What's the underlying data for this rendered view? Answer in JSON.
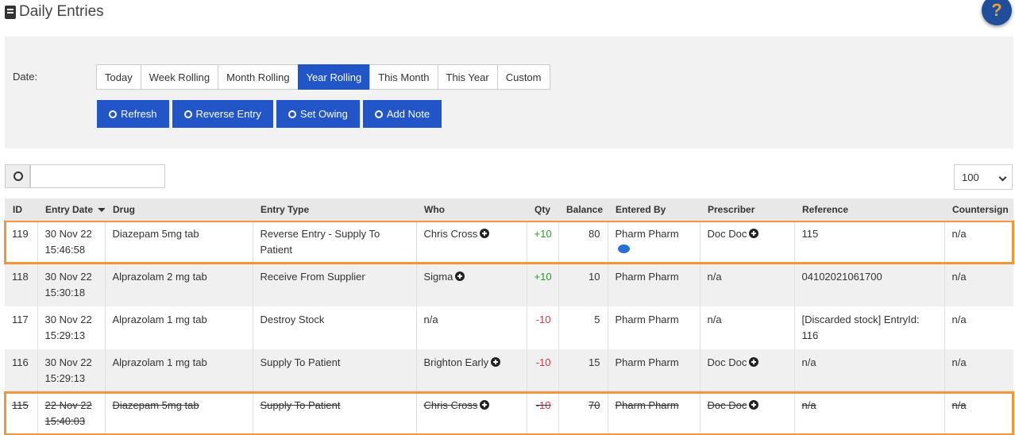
{
  "header": {
    "title": "Daily Entries",
    "help": "?"
  },
  "filters": {
    "date_label": "Date:",
    "ranges": [
      "Today",
      "Week Rolling",
      "Month Rolling",
      "Year Rolling",
      "This Month",
      "This Year",
      "Custom"
    ],
    "active_index": 3
  },
  "actions": [
    "Refresh",
    "Reverse Entry",
    "Set Owing",
    "Add Note"
  ],
  "page_size": "100",
  "table": {
    "columns": [
      "ID",
      "Entry Date",
      "Drug",
      "Entry Type",
      "Who",
      "Qty",
      "Balance",
      "Entered By",
      "Prescriber",
      "Reference",
      "Countersign"
    ],
    "rows": [
      {
        "cells": [
          "119",
          "30 Nov 22 15:46:58",
          "Diazepam 5mg tab",
          "Reverse Entry - Supply To Patient",
          "Chris Cross",
          "+10",
          "80",
          "Pharm Pharm",
          "Doc Doc",
          "115",
          "n/a"
        ],
        "qty_color": "#2e9a2e",
        "who_plus": true,
        "prescriber_plus": true,
        "comment": true,
        "highlight": true,
        "struck": false
      },
      {
        "cells": [
          "118",
          "30 Nov 22 15:30:18",
          "Alprazolam 2 mg tab",
          "Receive From Supplier",
          "Sigma",
          "+10",
          "10",
          "Pharm Pharm",
          "n/a",
          "04102021061700",
          "n/a"
        ],
        "qty_color": "#2e9a2e",
        "who_plus": true,
        "prescriber_plus": false,
        "comment": false,
        "highlight": false,
        "struck": false
      },
      {
        "cells": [
          "117",
          "30 Nov 22 15:29:13",
          "Alprazolam 1 mg tab",
          "Destroy Stock",
          "n/a",
          "-10",
          "5",
          "Pharm Pharm",
          "n/a",
          "[Discarded stock] EntryId: 116",
          "n/a"
        ],
        "qty_color": "#d9363e",
        "who_plus": false,
        "prescriber_plus": false,
        "comment": false,
        "highlight": false,
        "struck": false
      },
      {
        "cells": [
          "116",
          "30 Nov 22 15:29:13",
          "Alprazolam 1 mg tab",
          "Supply To Patient",
          "Brighton  Early",
          "-10",
          "15",
          "Pharm Pharm",
          "Doc Doc",
          "n/a",
          "n/a"
        ],
        "qty_color": "#d9363e",
        "who_plus": true,
        "prescriber_plus": true,
        "comment": false,
        "highlight": false,
        "struck": false
      },
      {
        "cells": [
          "115",
          "22 Nov 22 15:40:03",
          "Diazepam 5mg tab",
          "Supply To Patient",
          "Chris Cross",
          "-10",
          "70",
          "Pharm Pharm",
          "Doc Doc",
          "n/a",
          "n/a"
        ],
        "qty_color": "#d9363e",
        "who_plus": true,
        "prescriber_plus": true,
        "comment": false,
        "highlight": true,
        "struck": true
      }
    ]
  }
}
